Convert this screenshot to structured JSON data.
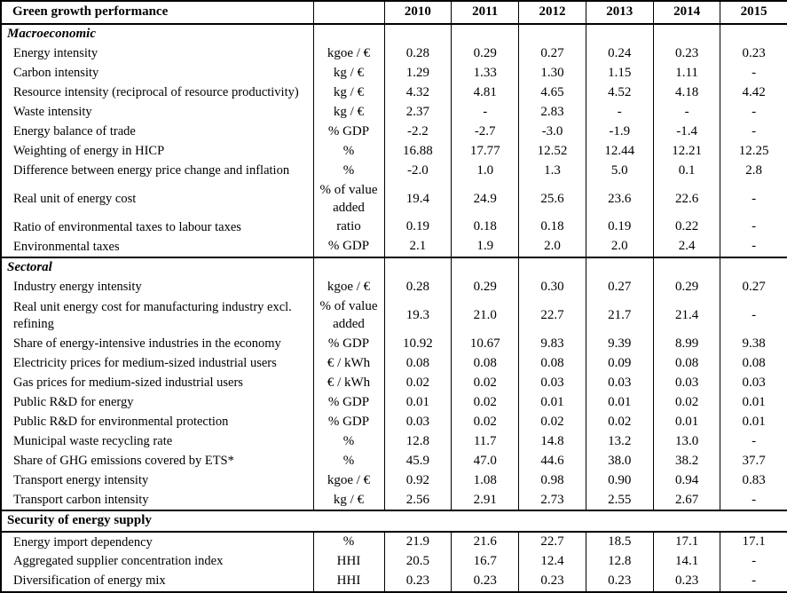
{
  "table": {
    "title": "Green growth performance",
    "unit_header": "",
    "years": [
      "2010",
      "2011",
      "2012",
      "2013",
      "2014",
      "2015"
    ],
    "missing_marker": "-",
    "colors": {
      "border": "#000000",
      "text": "#000000",
      "background": "#ffffff"
    },
    "rows": [
      {
        "type": "section",
        "label": "Macroeconomic",
        "span": false
      },
      {
        "type": "data",
        "label": "Energy intensity",
        "unit": "kgoe / €",
        "values": [
          "0.28",
          "0.29",
          "0.27",
          "0.24",
          "0.23",
          "0.23"
        ]
      },
      {
        "type": "data",
        "label": "Carbon intensity",
        "unit": "kg / €",
        "values": [
          "1.29",
          "1.33",
          "1.30",
          "1.15",
          "1.11",
          "-"
        ]
      },
      {
        "type": "data",
        "label": "Resource intensity (reciprocal of resource productivity)",
        "unit": "kg / €",
        "values": [
          "4.32",
          "4.81",
          "4.65",
          "4.52",
          "4.18",
          "4.42"
        ]
      },
      {
        "type": "data",
        "label": "Waste intensity",
        "unit": "kg / €",
        "values": [
          "2.37",
          "-",
          "2.83",
          "-",
          "-",
          "-"
        ]
      },
      {
        "type": "data",
        "label": "Energy balance of trade",
        "unit": "% GDP",
        "values": [
          "-2.2",
          "-2.7",
          "-3.0",
          "-1.9",
          "-1.4",
          "-"
        ]
      },
      {
        "type": "data",
        "label": "Weighting of energy in HICP",
        "unit": "%",
        "values": [
          "16.88",
          "17.77",
          "12.52",
          "12.44",
          "12.21",
          "12.25"
        ]
      },
      {
        "type": "data",
        "label": "Difference between energy price change and inflation",
        "unit": "%",
        "values": [
          "-2.0",
          "1.0",
          "1.3",
          "5.0",
          "0.1",
          "2.8"
        ]
      },
      {
        "type": "data",
        "label": "Real unit of energy cost",
        "unit": "% of value added",
        "values": [
          "19.4",
          "24.9",
          "25.6",
          "23.6",
          "22.6",
          "-"
        ]
      },
      {
        "type": "data",
        "label": "Ratio of environmental taxes to labour taxes",
        "unit": "ratio",
        "values": [
          "0.19",
          "0.18",
          "0.18",
          "0.19",
          "0.22",
          "-"
        ]
      },
      {
        "type": "data",
        "label": "Environmental taxes",
        "unit": "% GDP",
        "values": [
          "2.1",
          "1.9",
          "2.0",
          "2.0",
          "2.4",
          "-"
        ]
      },
      {
        "type": "section",
        "label": "Sectoral",
        "span": false
      },
      {
        "type": "data",
        "label": "Industry energy intensity",
        "unit": "kgoe / €",
        "values": [
          "0.28",
          "0.29",
          "0.30",
          "0.27",
          "0.29",
          "0.27"
        ]
      },
      {
        "type": "data",
        "label": "Real unit energy cost for manufacturing industry excl. refining",
        "unit": "% of value added",
        "values": [
          "19.3",
          "21.0",
          "22.7",
          "21.7",
          "21.4",
          "-"
        ]
      },
      {
        "type": "data",
        "label": "Share of energy-intensive industries in the economy",
        "unit": "% GDP",
        "values": [
          "10.92",
          "10.67",
          "9.83",
          "9.39",
          "8.99",
          "9.38"
        ]
      },
      {
        "type": "data",
        "label": "Electricity prices for medium-sized industrial users",
        "unit": "€ / kWh",
        "values": [
          "0.08",
          "0.08",
          "0.08",
          "0.09",
          "0.08",
          "0.08"
        ]
      },
      {
        "type": "data",
        "label": "Gas prices for medium-sized industrial users",
        "unit": "€ / kWh",
        "values": [
          "0.02",
          "0.02",
          "0.03",
          "0.03",
          "0.03",
          "0.03"
        ]
      },
      {
        "type": "data",
        "label": "Public R&D for energy",
        "unit": "% GDP",
        "values": [
          "0.01",
          "0.02",
          "0.01",
          "0.01",
          "0.02",
          "0.01"
        ]
      },
      {
        "type": "data",
        "label": "Public R&D for environmental protection",
        "unit": "% GDP",
        "values": [
          "0.03",
          "0.02",
          "0.02",
          "0.02",
          "0.01",
          "0.01"
        ]
      },
      {
        "type": "data",
        "label": "Municipal waste recycling rate",
        "unit": "%",
        "values": [
          "12.8",
          "11.7",
          "14.8",
          "13.2",
          "13.0",
          "-"
        ]
      },
      {
        "type": "data",
        "label": "Share of GHG emissions covered by ETS*",
        "unit": "%",
        "values": [
          "45.9",
          "47.0",
          "44.6",
          "38.0",
          "38.2",
          "37.7"
        ]
      },
      {
        "type": "data",
        "label": "Transport energy intensity",
        "unit": "kgoe / €",
        "values": [
          "0.92",
          "1.08",
          "0.98",
          "0.90",
          "0.94",
          "0.83"
        ]
      },
      {
        "type": "data",
        "label": "Transport carbon intensity",
        "unit": "kg / €",
        "values": [
          "2.56",
          "2.91",
          "2.73",
          "2.55",
          "2.67",
          "-"
        ]
      },
      {
        "type": "section",
        "label": "Security of energy supply",
        "span": true
      },
      {
        "type": "data",
        "label": "Energy import dependency",
        "unit": "%",
        "values": [
          "21.9",
          "21.6",
          "22.7",
          "18.5",
          "17.1",
          "17.1"
        ]
      },
      {
        "type": "data",
        "label": "Aggregated supplier concentration index",
        "unit": "HHI",
        "values": [
          "20.5",
          "16.7",
          "12.4",
          "12.8",
          "14.1",
          "-"
        ]
      },
      {
        "type": "data",
        "label": "Diversification of energy mix",
        "unit": "HHI",
        "values": [
          "0.23",
          "0.23",
          "0.23",
          "0.23",
          "0.23",
          "-"
        ]
      }
    ]
  }
}
